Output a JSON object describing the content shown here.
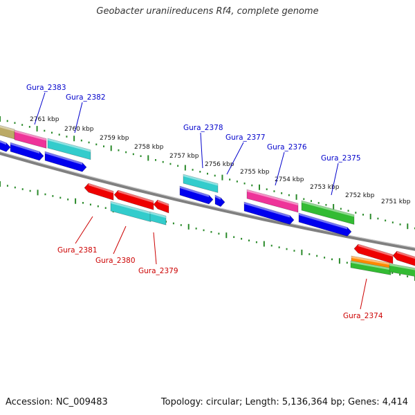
{
  "title": "Geobacter uraniireducens Rf4, complete genome",
  "footer": {
    "accession": "Accession: NC_009483",
    "summary": "Topology: circular; Length: 5,136,364 bp; Genes: 4,414"
  },
  "position_labels": [
    "2761 kbp",
    "2760 kbp",
    "2759 kbp",
    "2758 kbp",
    "2757 kbp",
    "2756 kbp",
    "2755 kbp",
    "2754 kbp",
    "2753 kbp",
    "2752 kbp",
    "2751 kbp"
  ],
  "gene_labels": {
    "forward": [
      "Gura_2383",
      "Gura_2382",
      "Gura_2378",
      "Gura_2377",
      "Gura_2376",
      "Gura_2375"
    ],
    "reverse": [
      "Gura_2381",
      "Gura_2380",
      "Gura_2379",
      "Gura_2374"
    ]
  },
  "colors": {
    "forward_label": "#0000cc",
    "reverse_label": "#cc0000",
    "backbone": "#808080",
    "ruler_dots": "#2a8a2a",
    "cds_blue": "#0000ee",
    "cds_red": "#ee0000",
    "cyan": "#33cccc",
    "magenta": "#ee3399",
    "green": "#33bb33",
    "orange": "#ff8800",
    "olive": "#bbaa66"
  }
}
